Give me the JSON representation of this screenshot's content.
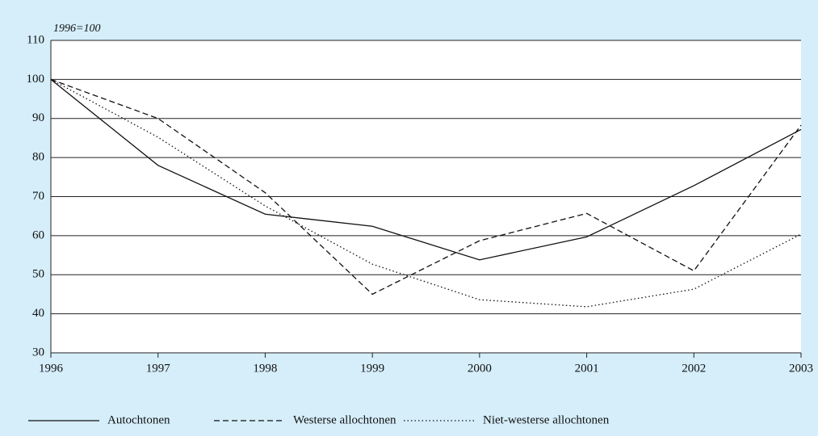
{
  "chart_data": {
    "type": "line",
    "subtitle": "1996=100",
    "categories": [
      "1996",
      "1997",
      "1998",
      "1999",
      "2000",
      "2001",
      "2002",
      "2003"
    ],
    "series": [
      {
        "name": "Autochtonen",
        "color": "#111111",
        "dash": "none",
        "values": [
          100,
          78,
          65.5,
          62.4,
          53.8,
          59.7,
          72.8,
          87.2
        ]
      },
      {
        "name": "Westerse allochtonen",
        "color": "#111111",
        "dash": "7,4",
        "values": [
          100,
          90,
          71,
          45,
          58.7,
          65.7,
          51,
          88.3
        ]
      },
      {
        "name": "Niet-westerse allochtonen",
        "color": "#111111",
        "dash": "1.5,3",
        "values": [
          100,
          85.2,
          67.6,
          52.7,
          43.6,
          41.8,
          46.3,
          60.4
        ]
      }
    ],
    "ylim": [
      30,
      110
    ],
    "yticks": [
      30,
      40,
      50,
      60,
      70,
      80,
      90,
      100,
      110
    ],
    "grid": true
  }
}
